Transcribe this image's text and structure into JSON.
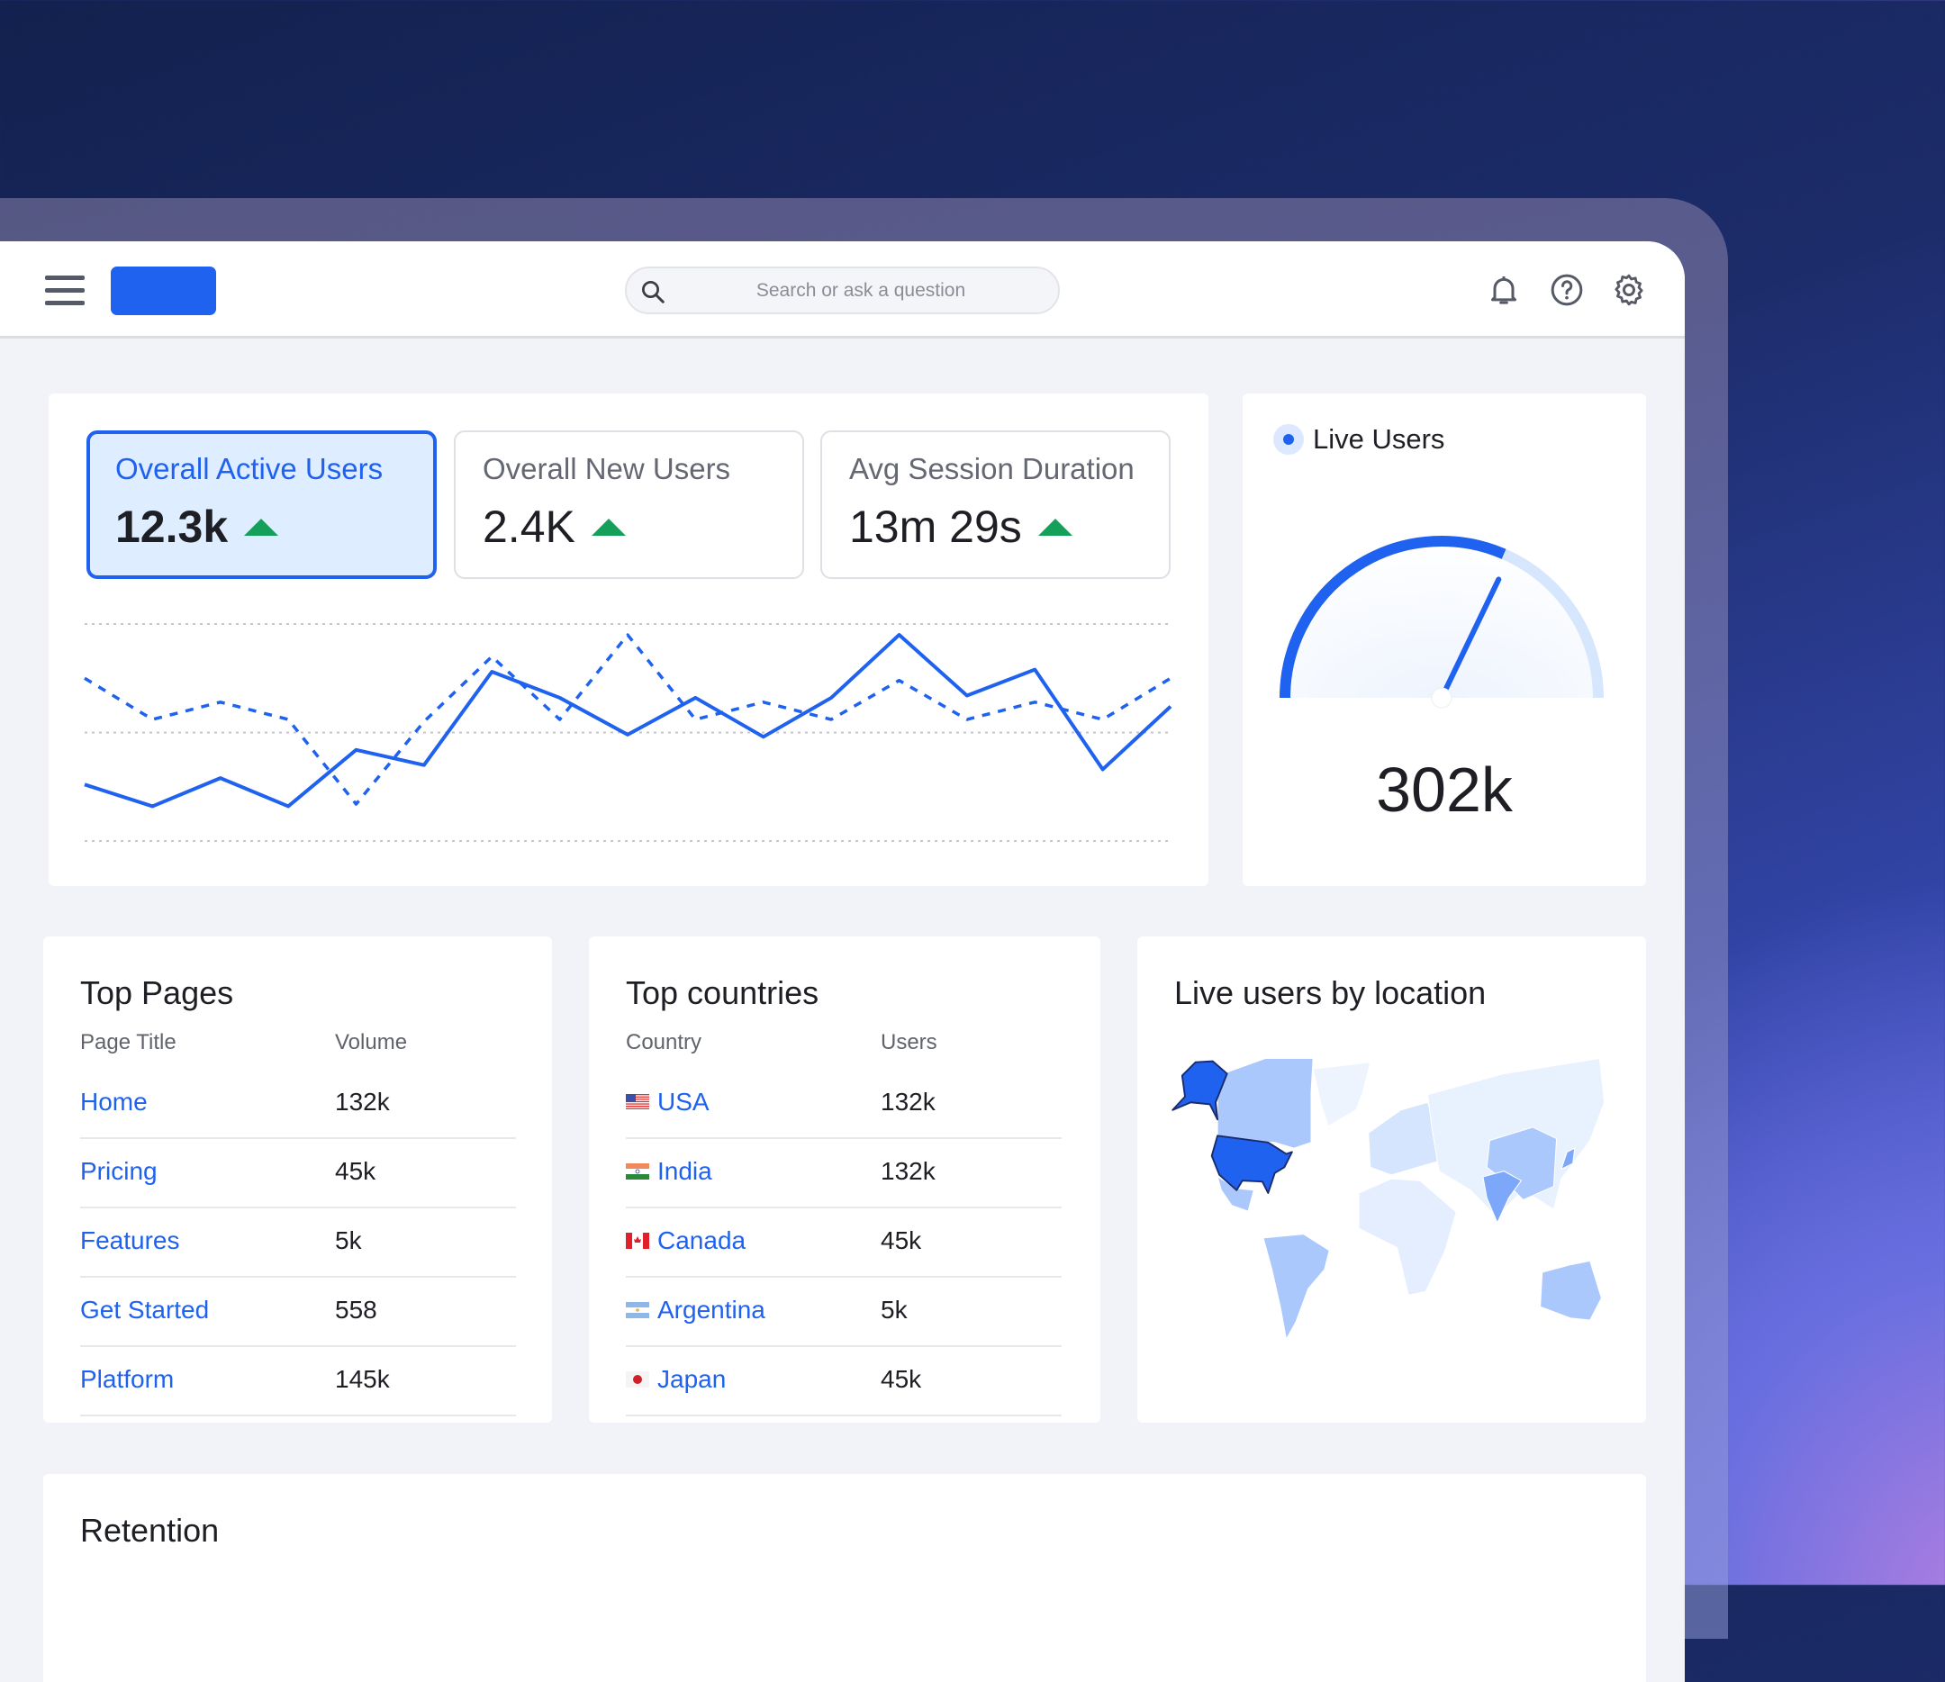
{
  "header": {
    "search_placeholder": "Search or ask a question",
    "icons": [
      "menu-icon",
      "bell-icon",
      "help-icon",
      "gear-icon"
    ],
    "brand_color": "#1f62f0"
  },
  "kpis": [
    {
      "label": "Overall Active Users",
      "value": "12.3k",
      "trend": "up",
      "selected": true
    },
    {
      "label": "Overall New Users",
      "value": "2.4K",
      "trend": "up"
    },
    {
      "label": "Avg Session Duration",
      "value": "13m 29s",
      "trend": "up"
    }
  ],
  "chart_data": {
    "type": "line",
    "grid": true,
    "ylim": [
      0,
      100
    ],
    "series": [
      {
        "style": "solid",
        "color": "#1f62f0",
        "values": [
          26,
          16,
          29,
          16,
          42,
          35,
          78,
          66,
          49,
          66,
          48,
          66,
          95,
          67,
          79,
          33,
          62
        ]
      },
      {
        "style": "dashed",
        "color": "#1f62f0",
        "values": [
          75,
          56,
          64,
          56,
          17,
          55,
          85,
          56,
          95,
          56,
          64,
          56,
          74,
          56,
          64,
          56,
          75
        ]
      }
    ]
  },
  "live": {
    "title": "Live Users",
    "value": "302k",
    "gauge_fraction": 0.63,
    "colors": {
      "fill": "#1f62f0",
      "track": "#d6e6fd"
    }
  },
  "top_pages": {
    "title": "Top Pages",
    "columns": [
      "Page Title",
      "Volume"
    ],
    "rows": [
      [
        "Home",
        "132k"
      ],
      [
        "Pricing",
        "45k"
      ],
      [
        "Features",
        "5k"
      ],
      [
        "Get Started",
        "558"
      ],
      [
        "Platform",
        "145k"
      ]
    ]
  },
  "top_countries": {
    "title": "Top countries",
    "columns": [
      "Country",
      "Users"
    ],
    "rows": [
      [
        "USA",
        "132k",
        "us"
      ],
      [
        "India",
        "132k",
        "in"
      ],
      [
        "Canada",
        "45k",
        "ca"
      ],
      [
        "Argentina",
        "5k",
        "ar"
      ],
      [
        "Japan",
        "45k",
        "jp"
      ]
    ]
  },
  "map": {
    "title": "Live users by location",
    "highlight": "USA",
    "highlight_color": "#1f62f0"
  },
  "retention": {
    "title": "Retention"
  }
}
